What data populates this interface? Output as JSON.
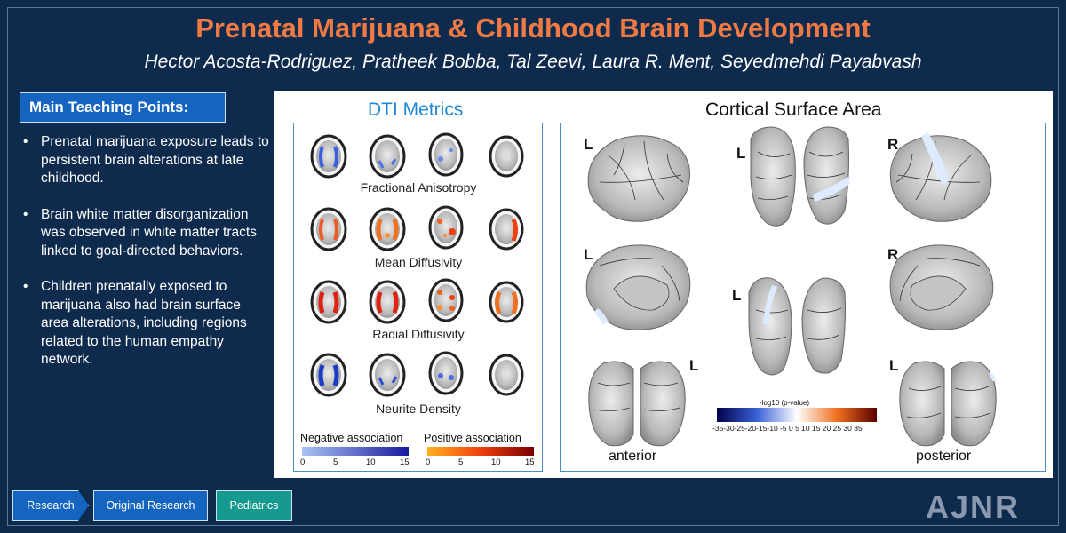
{
  "title": "Prenatal Marijuana & Childhood Brain Development",
  "authors": "Hector Acosta-Rodriguez, Pratheek Bobba, Tal Zeevi, Laura R. Ment, Seyedmehdi Payabvash",
  "teaching_points": {
    "label": "Main Teaching Points:",
    "items": [
      "Prenatal marijuana exposure leads to persistent brain alterations at late childhood.",
      "Brain white matter disorganization was observed in white matter tracts linked to goal-directed behaviors.",
      "Children prenatally exposed to marijuana also had brain surface area alterations, including regions related to the human empathy network."
    ]
  },
  "figure": {
    "dti": {
      "title": "DTI Metrics",
      "rows": [
        "Fractional Anisotropy",
        "Mean Diffusivity",
        "Radial Diffusivity",
        "Neurite Density"
      ],
      "legend": {
        "negative_label": "Negative association",
        "positive_label": "Positive association",
        "ticks": [
          "0",
          "5",
          "10",
          "15"
        ]
      }
    },
    "csa": {
      "title": "Cortical Surface Area",
      "letters": {
        "left": "L",
        "right": "R"
      },
      "views": {
        "anterior": "anterior",
        "posterior": "posterior"
      },
      "colorbar": {
        "title": "-log10 (p-value)",
        "ticks": "-35-30-25-20-15-10 -5  0   5  10 15 20 25 30 35"
      }
    }
  },
  "breadcrumbs": [
    "Research",
    "Original Research",
    "Pediatrics"
  ],
  "logo": "AJNR",
  "colors": {
    "background": "#0e2a4d",
    "title": "#f07a43",
    "accent_blue": "#1565c0",
    "teal": "#16998f"
  }
}
